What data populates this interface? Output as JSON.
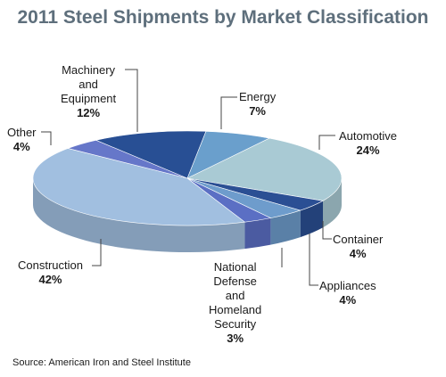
{
  "chart_data": {
    "type": "pie",
    "title": "2011 Steel Shipments by Market Classification",
    "source": "Source: American Iron and Steel Institute",
    "slices": [
      {
        "label": "Energy",
        "value": 7,
        "pct_label": "7%",
        "color": "#6a9fcc"
      },
      {
        "label": "Automotive",
        "value": 24,
        "pct_label": "24%",
        "color": "#a9cad4"
      },
      {
        "label": "Container",
        "value": 4,
        "pct_label": "4%",
        "color": "#2b4f94"
      },
      {
        "label": "Appliances",
        "value": 4,
        "pct_label": "4%",
        "color": "#6e9ccc"
      },
      {
        "label": "National Defense and Homeland Security",
        "value": 3,
        "pct_label": "3%",
        "color": "#5b6fc4"
      },
      {
        "label": "Construction",
        "value": 42,
        "pct_label": "42%",
        "color": "#a1bfe0"
      },
      {
        "label": "Other",
        "value": 4,
        "pct_label": "4%",
        "color": "#6677c9"
      },
      {
        "label": "Machinery and Equipment",
        "value": 12,
        "pct_label": "12%",
        "color": "#284f94"
      }
    ],
    "labels_text": {
      "energy": "Energy",
      "automotive": "Automotive",
      "container": "Container",
      "appliances": "Appliances",
      "defense_1": "National",
      "defense_2": "Defense",
      "defense_3": "and",
      "defense_4": "Homeland",
      "defense_5": "Security",
      "construction": "Construction",
      "other": "Other",
      "machinery_1": "Machinery",
      "machinery_2": "and",
      "machinery_3": "Equipment"
    }
  }
}
